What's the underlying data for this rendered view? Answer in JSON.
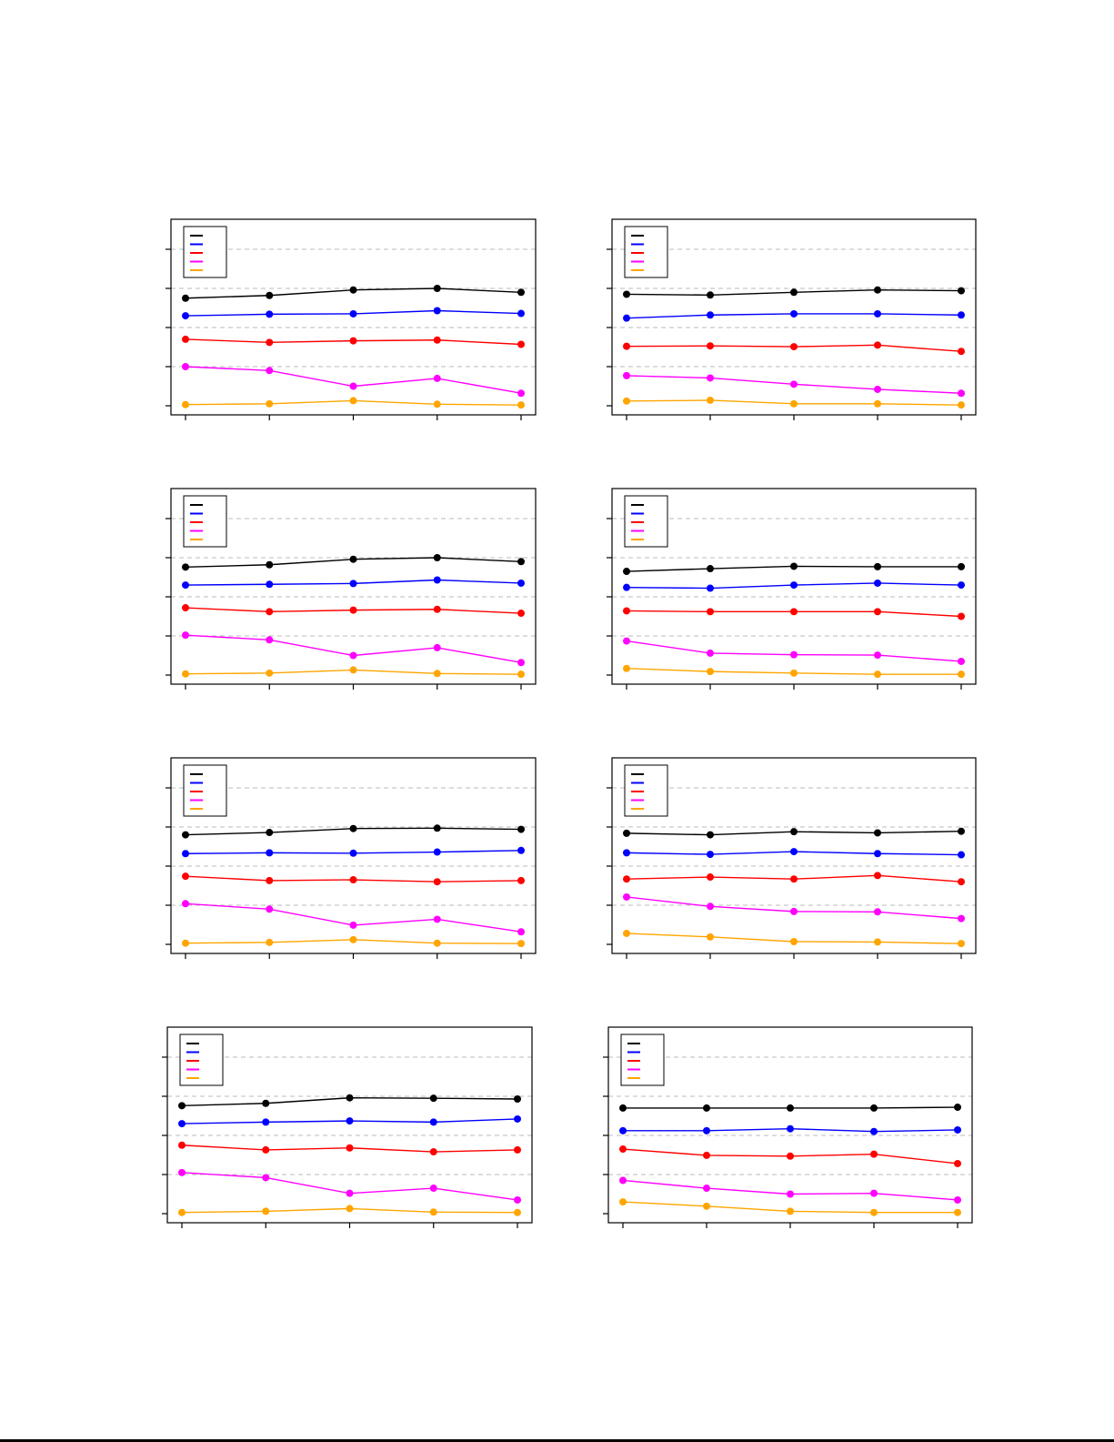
{
  "page": {
    "background": "#ffffff"
  },
  "style": {
    "series_colors": [
      "#000000",
      "#0000ff",
      "#ff0000",
      "#ff00ff",
      "#ffa500"
    ],
    "grid_color": "#bbbbbb",
    "frame_color": "#000000"
  },
  "chart_data": [
    {
      "type": "line",
      "x": [
        1,
        2,
        3,
        4,
        5
      ],
      "ylim": [
        0,
        5
      ],
      "yticks": [
        0,
        1,
        2,
        3,
        4
      ],
      "grid": true,
      "legend": {
        "placement": "top-left",
        "entries": 5
      },
      "series": [
        {
          "values": [
            2.75,
            2.82,
            2.96,
            3.0,
            2.9
          ]
        },
        {
          "values": [
            2.3,
            2.34,
            2.35,
            2.43,
            2.36
          ]
        },
        {
          "values": [
            1.7,
            1.62,
            1.66,
            1.68,
            1.57
          ]
        },
        {
          "values": [
            1.0,
            0.9,
            0.5,
            0.7,
            0.32
          ]
        },
        {
          "values": [
            0.03,
            0.05,
            0.13,
            0.04,
            0.02
          ]
        }
      ]
    },
    {
      "type": "line",
      "x": [
        1,
        2,
        3,
        4,
        5
      ],
      "ylim": [
        0,
        5
      ],
      "yticks": [
        0,
        1,
        2,
        3,
        4
      ],
      "grid": true,
      "legend": {
        "placement": "top-left",
        "entries": 5
      },
      "series": [
        {
          "values": [
            2.85,
            2.83,
            2.9,
            2.96,
            2.94
          ]
        },
        {
          "values": [
            2.24,
            2.32,
            2.35,
            2.35,
            2.32
          ]
        },
        {
          "values": [
            1.52,
            1.53,
            1.51,
            1.55,
            1.39
          ]
        },
        {
          "values": [
            0.77,
            0.71,
            0.55,
            0.42,
            0.32
          ]
        },
        {
          "values": [
            0.12,
            0.14,
            0.05,
            0.05,
            0.02
          ]
        }
      ]
    },
    {
      "type": "line",
      "x": [
        1,
        2,
        3,
        4,
        5
      ],
      "ylim": [
        0,
        5
      ],
      "yticks": [
        0,
        1,
        2,
        3,
        4
      ],
      "grid": true,
      "legend": {
        "placement": "top-left",
        "entries": 5
      },
      "series": [
        {
          "values": [
            2.76,
            2.82,
            2.96,
            3.0,
            2.9
          ]
        },
        {
          "values": [
            2.3,
            2.32,
            2.34,
            2.43,
            2.35
          ]
        },
        {
          "values": [
            1.72,
            1.62,
            1.66,
            1.68,
            1.58
          ]
        },
        {
          "values": [
            1.02,
            0.9,
            0.5,
            0.7,
            0.32
          ]
        },
        {
          "values": [
            0.03,
            0.05,
            0.13,
            0.04,
            0.02
          ]
        }
      ]
    },
    {
      "type": "line",
      "x": [
        1,
        2,
        3,
        4,
        5
      ],
      "ylim": [
        0,
        5
      ],
      "yticks": [
        0,
        1,
        2,
        3,
        4
      ],
      "grid": true,
      "legend": {
        "placement": "top-left",
        "entries": 5
      },
      "series": [
        {
          "values": [
            2.65,
            2.72,
            2.78,
            2.77,
            2.77
          ]
        },
        {
          "values": [
            2.24,
            2.22,
            2.3,
            2.35,
            2.3
          ]
        },
        {
          "values": [
            1.64,
            1.62,
            1.62,
            1.62,
            1.5
          ]
        },
        {
          "values": [
            0.87,
            0.56,
            0.52,
            0.51,
            0.35
          ]
        },
        {
          "values": [
            0.17,
            0.09,
            0.05,
            0.02,
            0.02
          ]
        }
      ]
    },
    {
      "type": "line",
      "x": [
        1,
        2,
        3,
        4,
        5
      ],
      "ylim": [
        0,
        5
      ],
      "yticks": [
        0,
        1,
        2,
        3,
        4
      ],
      "grid": true,
      "legend": {
        "placement": "top-left",
        "entries": 5
      },
      "series": [
        {
          "values": [
            2.8,
            2.86,
            2.96,
            2.97,
            2.94
          ]
        },
        {
          "values": [
            2.32,
            2.34,
            2.33,
            2.36,
            2.4
          ]
        },
        {
          "values": [
            1.74,
            1.63,
            1.65,
            1.6,
            1.63
          ]
        },
        {
          "values": [
            1.04,
            0.9,
            0.49,
            0.64,
            0.32
          ]
        },
        {
          "values": [
            0.03,
            0.05,
            0.12,
            0.03,
            0.02
          ]
        }
      ]
    },
    {
      "type": "line",
      "x": [
        1,
        2,
        3,
        4,
        5
      ],
      "ylim": [
        0,
        5
      ],
      "yticks": [
        0,
        1,
        2,
        3,
        4
      ],
      "grid": true,
      "legend": {
        "placement": "top-left",
        "entries": 5
      },
      "series": [
        {
          "values": [
            2.84,
            2.8,
            2.88,
            2.85,
            2.89
          ]
        },
        {
          "values": [
            2.34,
            2.3,
            2.37,
            2.32,
            2.29
          ]
        },
        {
          "values": [
            1.67,
            1.72,
            1.67,
            1.76,
            1.6
          ]
        },
        {
          "values": [
            1.21,
            0.97,
            0.84,
            0.83,
            0.66
          ]
        },
        {
          "values": [
            0.28,
            0.19,
            0.07,
            0.06,
            0.02
          ]
        }
      ]
    },
    {
      "type": "line",
      "x": [
        1,
        2,
        3,
        4,
        5
      ],
      "ylim": [
        0,
        5
      ],
      "yticks": [
        0,
        1,
        2,
        3,
        4
      ],
      "grid": true,
      "legend": {
        "placement": "top-left",
        "entries": 5
      },
      "series": [
        {
          "values": [
            2.76,
            2.82,
            2.96,
            2.95,
            2.93
          ]
        },
        {
          "values": [
            2.3,
            2.34,
            2.37,
            2.34,
            2.42
          ]
        },
        {
          "values": [
            1.75,
            1.63,
            1.68,
            1.58,
            1.63
          ]
        },
        {
          "values": [
            1.05,
            0.92,
            0.52,
            0.65,
            0.35
          ]
        },
        {
          "values": [
            0.03,
            0.06,
            0.13,
            0.04,
            0.03
          ]
        }
      ]
    },
    {
      "type": "line",
      "x": [
        1,
        2,
        3,
        4,
        5
      ],
      "ylim": [
        0,
        5
      ],
      "yticks": [
        0,
        1,
        2,
        3,
        4
      ],
      "grid": true,
      "legend": {
        "placement": "top-left",
        "entries": 5
      },
      "series": [
        {
          "values": [
            2.7,
            2.7,
            2.7,
            2.7,
            2.72
          ]
        },
        {
          "values": [
            2.12,
            2.12,
            2.17,
            2.1,
            2.14
          ]
        },
        {
          "values": [
            1.65,
            1.49,
            1.47,
            1.52,
            1.28
          ]
        },
        {
          "values": [
            0.85,
            0.65,
            0.5,
            0.52,
            0.35
          ]
        },
        {
          "values": [
            0.3,
            0.19,
            0.06,
            0.03,
            0.03
          ]
        }
      ]
    }
  ]
}
